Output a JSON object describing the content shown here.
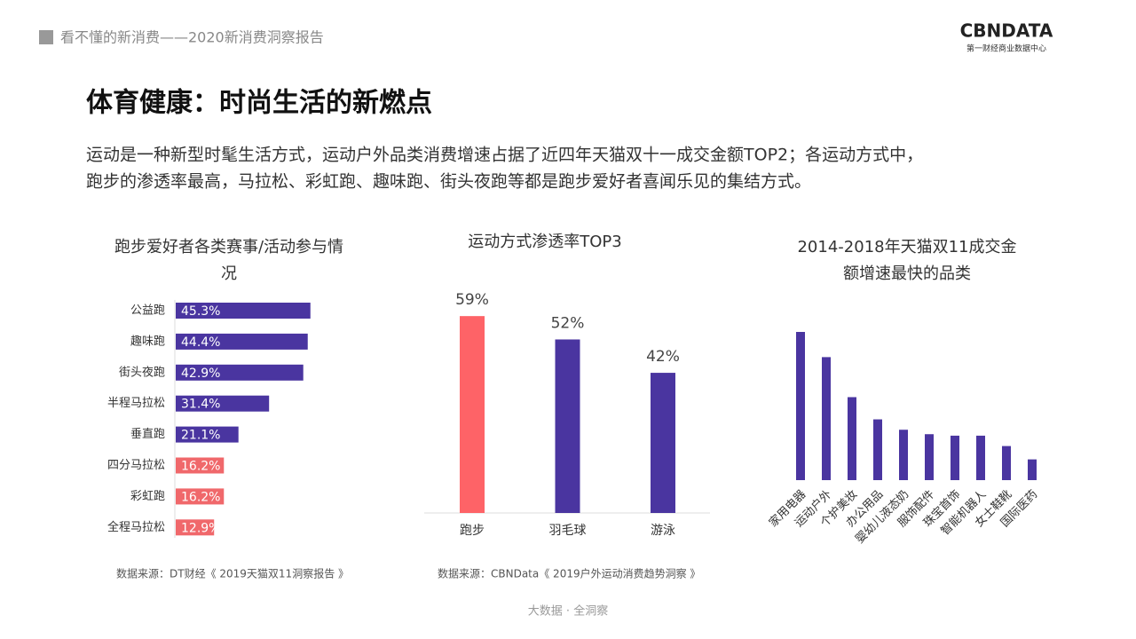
{
  "header": {
    "breadcrumb": "看不懂的新消费——2020新消费洞察报告",
    "logo": "CBNDATA",
    "logo_sub": "第一财经商业数据中心"
  },
  "title": "体育健康：时尚生活的新燃点",
  "intro": [
    "运动是一种新型时髦生活方式，运动户外品类消费增速占据了近四年天猫双十一成交金额TOP2；各运动方式中，",
    "跑步的渗透率最高，马拉松、彩虹跑、趣味跑、街头夜跑等都是跑步爱好者喜闻乐见的集结方式。"
  ],
  "chart_data": [
    {
      "type": "bar",
      "orientation": "horizontal",
      "title": "跑步爱好者各类赛事/活动参与情况",
      "categories": [
        "公益跑",
        "趣味跑",
        "街头夜跑",
        "半程马拉松",
        "垂直跑",
        "四分马拉松",
        "彩虹跑",
        "全程马拉松"
      ],
      "values": [
        45.3,
        44.4,
        42.9,
        31.4,
        21.1,
        16.2,
        16.2,
        12.9
      ],
      "value_labels": [
        "45.3%",
        "44.4%",
        "42.9%",
        "31.4%",
        "21.1%",
        "16.2%",
        "16.2%",
        "12.9%"
      ],
      "colors": [
        "#4a35a0",
        "#4a35a0",
        "#4a35a0",
        "#4a35a0",
        "#4a35a0",
        "#f0686b",
        "#f0686b",
        "#f0686b"
      ],
      "source": "数据来源：DT财经《 2019天猫双11洞察报告 》"
    },
    {
      "type": "bar",
      "orientation": "vertical",
      "title": "运动方式渗透率TOP3",
      "categories": [
        "跑步",
        "羽毛球",
        "游泳"
      ],
      "values": [
        59,
        52,
        42
      ],
      "value_labels": [
        "59%",
        "52%",
        "42%"
      ],
      "colors": [
        "#fe6367",
        "#4a35a0",
        "#4a35a0"
      ],
      "source": "数据来源：CBNData《 2019户外运动消费趋势洞察 》"
    },
    {
      "type": "bar",
      "orientation": "vertical",
      "title": "2014-2018年天猫双11成交金额增速最快的品类",
      "categories": [
        "家用电器",
        "运动户外",
        "个护美妆",
        "办公用品",
        "婴幼儿液态奶",
        "服饰配件",
        "珠宝首饰",
        "智能机器人",
        "女士鞋靴",
        "国际医药"
      ],
      "values": [
        100,
        83,
        56,
        41,
        34,
        31,
        30,
        30,
        23,
        14
      ],
      "colors": [
        "#4a35a0",
        "#4a35a0",
        "#4a35a0",
        "#4a35a0",
        "#4a35a0",
        "#4a35a0",
        "#4a35a0",
        "#4a35a0",
        "#4a35a0",
        "#4a35a0"
      ]
    }
  ],
  "footer": "大数据 · 全洞察"
}
